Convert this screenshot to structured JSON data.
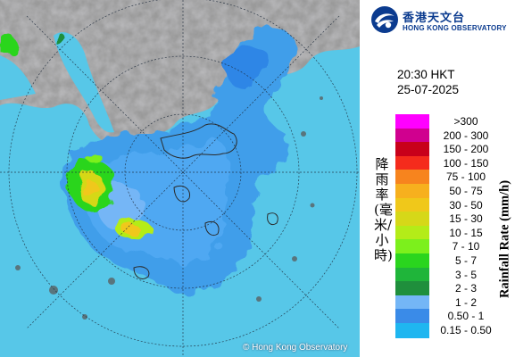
{
  "header": {
    "org_name_cn": "香港天文台",
    "org_name_en": "HONG KONG OBSERVATORY"
  },
  "timestamp": {
    "time": "20:30 HKT",
    "date": "25-07-2025"
  },
  "map": {
    "copyright": "© Hong Kong Observatory"
  },
  "legend": {
    "title_cn": "降雨率(毫米/小時)",
    "title_en": "Rainfall Rate (mm/h)",
    "items": [
      {
        "label": ">300",
        "color": "#ff00ff"
      },
      {
        "label": "200 - 300",
        "color": "#d0008f"
      },
      {
        "label": "150 - 200",
        "color": "#c8001a"
      },
      {
        "label": "100 - 150",
        "color": "#f52b1c"
      },
      {
        "label": "75 - 100",
        "color": "#f7841e"
      },
      {
        "label": "50 - 75",
        "color": "#f7b01e"
      },
      {
        "label": "30 - 50",
        "color": "#f0c81a"
      },
      {
        "label": "15 - 30",
        "color": "#d6d818"
      },
      {
        "label": "10 - 15",
        "color": "#b4ec18"
      },
      {
        "label": "7 - 10",
        "color": "#7cf01c"
      },
      {
        "label": "5 - 7",
        "color": "#2ad51e"
      },
      {
        "label": "3 - 5",
        "color": "#1fb53a"
      },
      {
        "label": "2 - 3",
        "color": "#1f8f3c"
      },
      {
        "label": "1 - 2",
        "color": "#74b6f6"
      },
      {
        "label": "0.50 - 1",
        "color": "#3a8be8"
      },
      {
        "label": "0.15 - 0.50",
        "color": "#1fb6f0"
      }
    ]
  }
}
